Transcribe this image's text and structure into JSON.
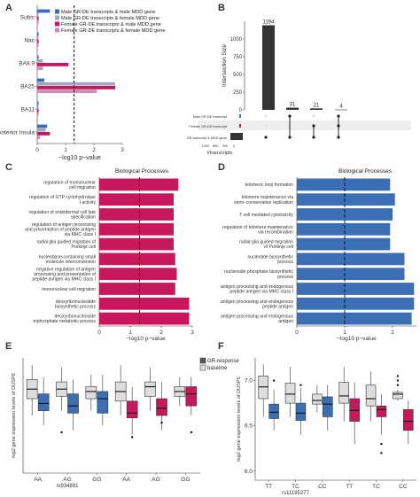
{
  "panel_labels": [
    "A",
    "B",
    "C",
    "D",
    "E",
    "F"
  ],
  "chart_data": [
    {
      "panel": "A",
      "type": "bar",
      "orientation": "horizontal",
      "categories": [
        "Subic",
        "Nac",
        "BA8.9",
        "BA25",
        "BA11",
        "Anterior Insula"
      ],
      "series": [
        {
          "name": "Male GR-DE transcripts & male MDD gene",
          "color": "#3a6fb5",
          "values": [
            0.45,
            0.05,
            0.05,
            0.25,
            0.05,
            0.35
          ]
        },
        {
          "name": "Male GR-DE transcripts & female MDD gene",
          "color": "#a0a8c0",
          "values": [
            0.05,
            0.05,
            0.2,
            2.75,
            0.05,
            0.3
          ]
        },
        {
          "name": "Female GR-DE transcripts & male MDD gene",
          "color": "#c8175a",
          "values": [
            0.05,
            0.05,
            1.1,
            2.75,
            0.05,
            0.45
          ]
        },
        {
          "name": "Female GR-DE transcripts & female MDD gene",
          "color": "#c990b5",
          "values": [
            0.05,
            0.05,
            0.2,
            2.1,
            0.05,
            0.1
          ]
        }
      ],
      "xlabel": "−log10 p−value",
      "xticks": [
        "0",
        "1",
        "2",
        "3"
      ],
      "xlim": [
        0,
        3
      ],
      "threshold": 1.3
    },
    {
      "panel": "B",
      "type": "bar",
      "ylabel": "Intersection Size",
      "yticks": [
        "0",
        "250",
        "500",
        "750",
        "1000"
      ],
      "ylim": [
        0,
        1250
      ],
      "values": [
        1194,
        31,
        21,
        4
      ],
      "value_labels": [
        "1194",
        "31",
        "21",
        "4"
      ],
      "set_labels": [
        "Male GR-DE transcript",
        "Female GR-DE transcript",
        "GR-transcript & MDD gene"
      ],
      "set_colors": [
        "#3a6fb5",
        "#c8175a",
        "#333333"
      ],
      "set_size_ticks": [
        "1200",
        "800",
        "400",
        "0"
      ],
      "set_size_label": "#transcripts"
    },
    {
      "panel": "C",
      "type": "bar",
      "orientation": "horizontal",
      "title": "Biological Processes",
      "color": "#c8175a",
      "categories": [
        "regulation of mononuclear\ncell migration",
        "regulation of GTP cyclohydrolase\nI activity",
        "regulation of endodermal cell fate\nspecification",
        "regulation of antigen processing\nand presentation of peptide antigen\nvia MHC class I",
        "radial glia guided migration of\nPurkinje cell",
        "nucleobase-containing small\nmolecule interconversion",
        "negative regulation of antigen\nprocessing and presentation of\npeptide antigen via MHC class I",
        "mononuclear cell migration",
        "deoxyribonucleotide\nbiosynthetic process",
        "deoxyribonucleoside\ntriphosphate metabolic process"
      ],
      "values": [
        2.55,
        2.4,
        2.4,
        2.4,
        2.4,
        2.45,
        2.5,
        2.45,
        2.9,
        2.9
      ],
      "xlabel": "−log10 p−value",
      "xticks": [
        "0",
        "1",
        "2",
        "3"
      ],
      "xlim": [
        0,
        3
      ],
      "threshold": 1.3
    },
    {
      "panel": "D",
      "type": "bar",
      "orientation": "horizontal",
      "title": "Biological Processes",
      "color": "#3a6fb5",
      "categories": [
        "telomeric loop formation",
        "telomere maintenance via\nsemi−conservative replication",
        "T cell mediated cytotoxicity",
        "regulation of telomere maintenance\nvia recombination",
        "radial glia guided migration\nof Purkinje cell",
        "nucleotide biosynthetic\nprocess",
        "nucleoside phosphate biosynthetic\nprocess",
        "antigen processing and endogenous\npeptide antigen via MHC class I",
        "antigen processing and endogenous\npeptide antigen",
        "antigen processing and endogenous\nantigen"
      ],
      "values": [
        1.95,
        2.05,
        2.0,
        1.95,
        1.95,
        2.25,
        2.25,
        2.45,
        2.45,
        2.4
      ],
      "xlabel": "−log10 p−value",
      "xticks": [
        "0",
        "1",
        "2"
      ],
      "xlim": [
        0,
        2.5
      ],
      "threshold": 1.0
    },
    {
      "panel": "E",
      "type": "box",
      "ylabel": "log2 gene expression levels of DUSP8",
      "xlabel": "rs934891",
      "genotypes": [
        "AA",
        "AG",
        "GG",
        "AA",
        "AG",
        "GG"
      ],
      "legend": [
        {
          "name": "GR-response",
          "color": "#555555"
        },
        {
          "name": "baseline",
          "color": "#dddddd"
        }
      ],
      "ylim": [
        5.6,
        8.0
      ],
      "boxes": [
        {
          "fill": "#dddddd",
          "min": 6.8,
          "q1": 7.15,
          "median": 7.35,
          "q3": 7.55,
          "max": 7.85
        },
        {
          "fill": "#3a6fb5",
          "min": 6.6,
          "q1": 6.9,
          "median": 7.05,
          "q3": 7.25,
          "max": 7.6
        },
        {
          "fill": "#dddddd",
          "min": 6.9,
          "q1": 7.2,
          "median": 7.35,
          "q3": 7.5,
          "max": 7.8
        },
        {
          "fill": "#3a6fb5",
          "min": 6.5,
          "q1": 6.85,
          "median": 7.0,
          "q3": 7.25,
          "max": 7.55
        },
        {
          "fill": "#dddddd",
          "min": 6.9,
          "q1": 7.15,
          "median": 7.3,
          "q3": 7.4,
          "max": 7.65
        },
        {
          "fill": "#3a6fb5",
          "min": 6.6,
          "q1": 6.85,
          "median": 7.15,
          "q3": 7.3,
          "max": 7.65
        },
        {
          "fill": "#dddddd",
          "min": 6.8,
          "q1": 7.1,
          "median": 7.3,
          "q3": 7.5,
          "max": 7.85
        },
        {
          "fill": "#c8175a",
          "min": 6.4,
          "q1": 6.75,
          "median": 6.85,
          "q3": 7.1,
          "max": 7.4
        },
        {
          "fill": "#dddddd",
          "min": 6.9,
          "q1": 7.2,
          "median": 7.4,
          "q3": 7.5,
          "max": 7.8
        },
        {
          "fill": "#c8175a",
          "min": 6.5,
          "q1": 6.8,
          "median": 6.95,
          "q3": 7.15,
          "max": 7.5
        },
        {
          "fill": "#dddddd",
          "min": 7.0,
          "q1": 7.2,
          "median": 7.3,
          "q3": 7.4,
          "max": 7.6
        },
        {
          "fill": "#c8175a",
          "min": 6.8,
          "q1": 7.0,
          "median": 7.25,
          "q3": 7.4,
          "max": 7.6
        }
      ],
      "outliers": [
        [
          2,
          6.45
        ],
        [
          7,
          6.35
        ],
        [
          9,
          6.65
        ],
        [
          11,
          6.45
        ]
      ]
    },
    {
      "panel": "F",
      "type": "box",
      "ylabel": "log2 gene expression levels of DUSP5",
      "xlabel": "rs11195277",
      "yticks": [
        "6.0",
        "6.5",
        "7.0"
      ],
      "genotypes": [
        "TT",
        "TC",
        "CC",
        "TT",
        "TC",
        "CC"
      ],
      "ylim": [
        5.9,
        7.25
      ],
      "boxes": [
        {
          "fill": "#dddddd",
          "min": 6.6,
          "q1": 6.8,
          "median": 6.93,
          "q3": 7.05,
          "max": 7.18
        },
        {
          "fill": "#3a6fb5",
          "min": 6.45,
          "q1": 6.58,
          "median": 6.65,
          "q3": 6.74,
          "max": 6.9
        },
        {
          "fill": "#dddddd",
          "min": 6.6,
          "q1": 6.75,
          "median": 6.85,
          "q3": 6.97,
          "max": 7.15
        },
        {
          "fill": "#3a6fb5",
          "min": 6.4,
          "q1": 6.56,
          "median": 6.64,
          "q3": 6.75,
          "max": 6.92
        },
        {
          "fill": "#dddddd",
          "min": 6.65,
          "q1": 6.74,
          "median": 6.78,
          "q3": 6.85,
          "max": 6.95
        },
        {
          "fill": "#3a6fb5",
          "min": 6.45,
          "q1": 6.6,
          "median": 6.74,
          "q3": 6.82,
          "max": 6.95
        },
        {
          "fill": "#dddddd",
          "min": 6.55,
          "q1": 6.75,
          "median": 6.83,
          "q3": 6.98,
          "max": 7.15
        },
        {
          "fill": "#c8175a",
          "min": 6.3,
          "q1": 6.55,
          "median": 6.67,
          "q3": 6.8,
          "max": 6.98
        },
        {
          "fill": "#dddddd",
          "min": 6.55,
          "q1": 6.72,
          "median": 6.8,
          "q3": 6.95,
          "max": 7.1
        },
        {
          "fill": "#c8175a",
          "min": 6.4,
          "q1": 6.6,
          "median": 6.68,
          "q3": 6.72,
          "max": 6.85
        },
        {
          "fill": "#dddddd",
          "min": 6.78,
          "q1": 6.8,
          "median": 6.85,
          "q3": 6.87,
          "max": 6.9
        },
        {
          "fill": "#c8175a",
          "min": 6.3,
          "q1": 6.45,
          "median": 6.55,
          "q3": 6.68,
          "max": 6.78
        }
      ],
      "outliers": [
        [
          1,
          7.0
        ],
        [
          3,
          6.95
        ],
        [
          9,
          6.3
        ],
        [
          9,
          6.2
        ],
        [
          10,
          7.05
        ],
        [
          10,
          7.0
        ],
        [
          10,
          6.95
        ]
      ]
    }
  ]
}
